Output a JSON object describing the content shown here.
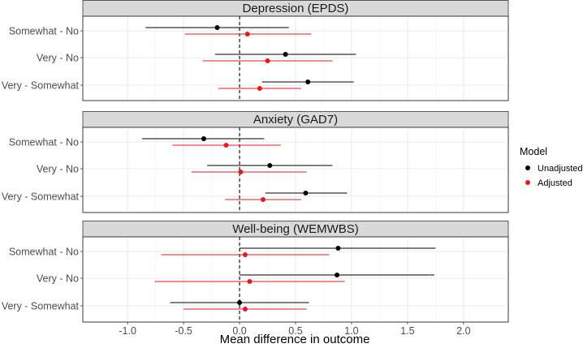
{
  "chart_data": {
    "type": "forest",
    "xlabel": "Mean difference in outcome",
    "ylabel": "",
    "xlim": [
      -1.4,
      2.4
    ],
    "xticks": [
      -1.0,
      -0.5,
      0.0,
      0.5,
      1.0,
      1.5,
      2.0
    ],
    "xtick_labels": [
      "-1.0",
      "-0.5",
      "0.0",
      "0.5",
      "1.0",
      "1.5",
      "2.0"
    ],
    "reference_line": 0,
    "grid": true,
    "legend": {
      "title": "Model",
      "position": "right",
      "entries": [
        {
          "name": "Unadjusted",
          "color": "#000000"
        },
        {
          "name": "Adjusted",
          "color": "#e41a1c"
        }
      ]
    },
    "categories": [
      "Somewhat - No",
      "Very - No",
      "Very - Somewhat"
    ],
    "panels": [
      {
        "title": "Depression (EPDS)",
        "estimates": [
          {
            "category": "Somewhat - No",
            "model": "Unadjusted",
            "est": -0.2,
            "lo": -0.84,
            "hi": 0.44
          },
          {
            "category": "Somewhat - No",
            "model": "Adjusted",
            "est": 0.07,
            "lo": -0.49,
            "hi": 0.64
          },
          {
            "category": "Very - No",
            "model": "Unadjusted",
            "est": 0.41,
            "lo": -0.22,
            "hi": 1.04
          },
          {
            "category": "Very - No",
            "model": "Adjusted",
            "est": 0.25,
            "lo": -0.33,
            "hi": 0.83
          },
          {
            "category": "Very - Somewhat",
            "model": "Unadjusted",
            "est": 0.61,
            "lo": 0.2,
            "hi": 1.02
          },
          {
            "category": "Very - Somewhat",
            "model": "Adjusted",
            "est": 0.18,
            "lo": -0.19,
            "hi": 0.55
          }
        ]
      },
      {
        "title": "Anxiety (GAD7)",
        "estimates": [
          {
            "category": "Somewhat - No",
            "model": "Unadjusted",
            "est": -0.32,
            "lo": -0.87,
            "hi": 0.22
          },
          {
            "category": "Somewhat - No",
            "model": "Adjusted",
            "est": -0.12,
            "lo": -0.6,
            "hi": 0.37
          },
          {
            "category": "Very - No",
            "model": "Unadjusted",
            "est": 0.27,
            "lo": -0.29,
            "hi": 0.83
          },
          {
            "category": "Very - No",
            "model": "Adjusted",
            "est": 0.01,
            "lo": -0.43,
            "hi": 0.6
          },
          {
            "category": "Very - Somewhat",
            "model": "Unadjusted",
            "est": 0.59,
            "lo": 0.23,
            "hi": 0.96
          },
          {
            "category": "Very - Somewhat",
            "model": "Adjusted",
            "est": 0.21,
            "lo": -0.13,
            "hi": 0.55
          }
        ]
      },
      {
        "title": "Well-being (WEMWBS)",
        "estimates": [
          {
            "category": "Somewhat - No",
            "model": "Unadjusted",
            "est": 0.88,
            "lo": 0.0,
            "hi": 1.75
          },
          {
            "category": "Somewhat - No",
            "model": "Adjusted",
            "est": 0.05,
            "lo": -0.7,
            "hi": 0.8
          },
          {
            "category": "Very - No",
            "model": "Unadjusted",
            "est": 0.87,
            "lo": 0.0,
            "hi": 1.74
          },
          {
            "category": "Very - No",
            "model": "Adjusted",
            "est": 0.09,
            "lo": -0.76,
            "hi": 0.94
          },
          {
            "category": "Very - Somewhat",
            "model": "Unadjusted",
            "est": 0.0,
            "lo": -0.62,
            "hi": 0.62
          },
          {
            "category": "Very - Somewhat",
            "model": "Adjusted",
            "est": 0.05,
            "lo": -0.5,
            "hi": 0.6
          }
        ]
      }
    ]
  }
}
